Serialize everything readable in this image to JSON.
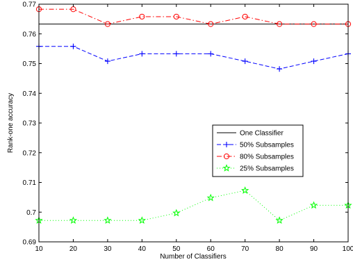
{
  "chart_data": {
    "type": "line",
    "title": "",
    "xlabel": "Number of Classifiers",
    "ylabel": "Rank-one accuracy",
    "x": [
      10,
      20,
      30,
      40,
      50,
      60,
      70,
      80,
      90,
      100
    ],
    "xlim": [
      10,
      100
    ],
    "ylim": [
      0.69,
      0.77
    ],
    "xticks": [
      "10",
      "20",
      "30",
      "40",
      "50",
      "60",
      "70",
      "80",
      "90",
      "100"
    ],
    "yticks": [
      "0.69",
      "0.7",
      "0.71",
      "0.72",
      "0.73",
      "0.74",
      "0.75",
      "0.76",
      "0.77"
    ],
    "grid": false,
    "legend_position": "center-right",
    "series": [
      {
        "name": "One Classifier",
        "color": "#000000",
        "dash": "solid",
        "marker": "none",
        "values": [
          0.7633,
          0.7633,
          0.7633,
          0.7633,
          0.7633,
          0.7633,
          0.7633,
          0.7633,
          0.7633,
          0.7633
        ]
      },
      {
        "name": "50% Subsamples",
        "color": "#0000ff",
        "dash": "dashed",
        "marker": "plus",
        "values": [
          0.7558,
          0.7558,
          0.7508,
          0.7533,
          0.7533,
          0.7533,
          0.7508,
          0.7482,
          0.7508,
          0.7533
        ]
      },
      {
        "name": "80% Subsamples",
        "color": "#ff0000",
        "dash": "dashdot",
        "marker": "circle",
        "values": [
          0.7683,
          0.7683,
          0.7633,
          0.7658,
          0.7658,
          0.7633,
          0.7658,
          0.7633,
          0.7633,
          0.7633
        ]
      },
      {
        "name": "25% Subsamples",
        "color": "#00ff00",
        "dash": "dotted",
        "marker": "star",
        "values": [
          0.6972,
          0.6972,
          0.6972,
          0.6972,
          0.6997,
          0.7048,
          0.7073,
          0.6972,
          0.7023,
          0.7023
        ]
      }
    ]
  }
}
